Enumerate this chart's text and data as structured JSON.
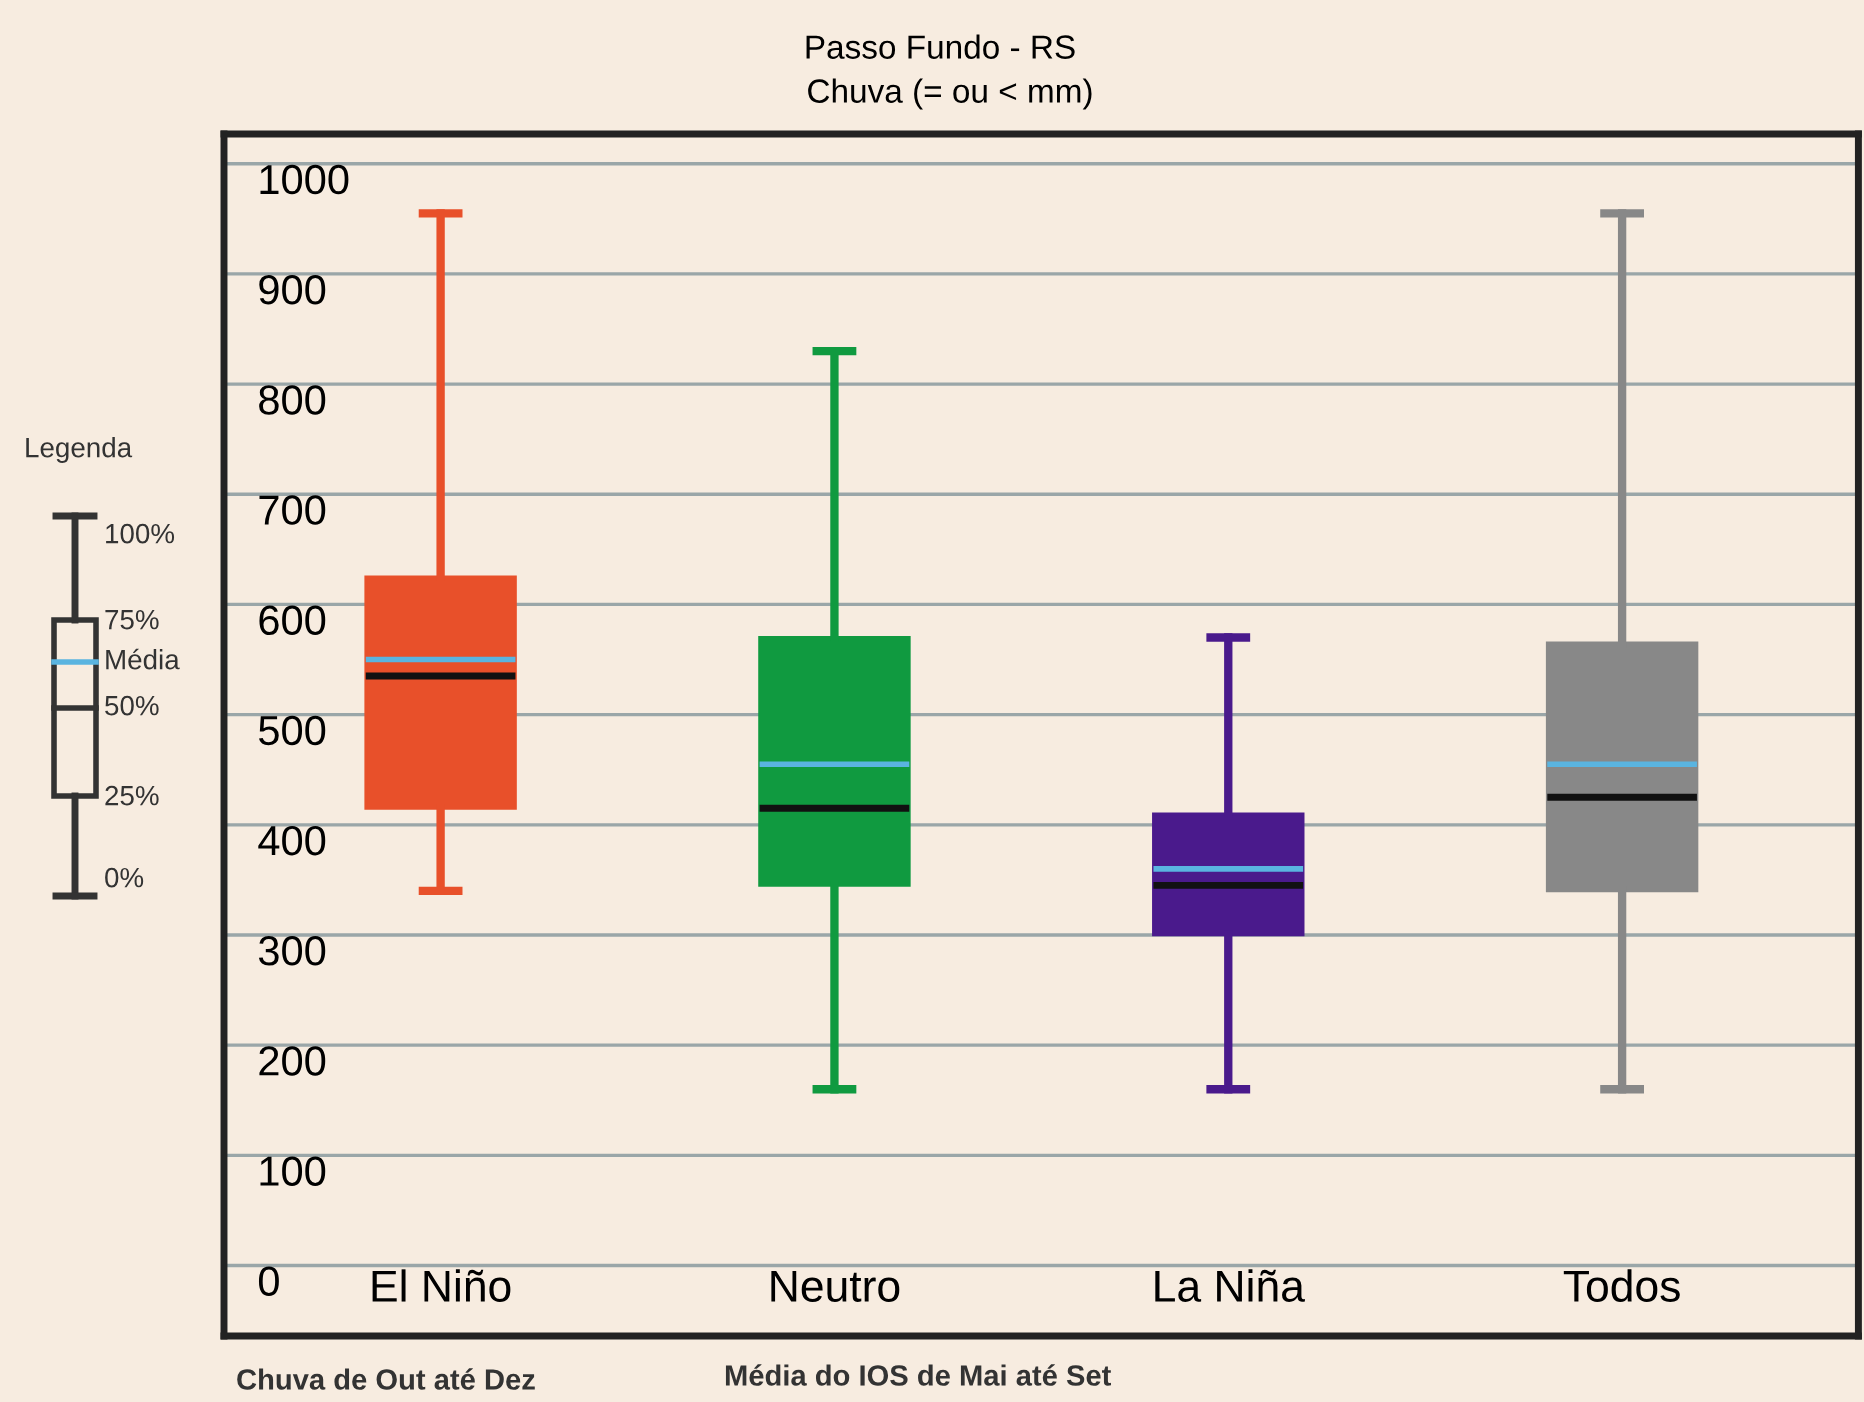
{
  "chart_data": {
    "type": "box",
    "title": "Passo Fundo - RS",
    "subtitle": "Chuva (= ou < mm)",
    "categories": [
      "El Niño",
      "Neutro",
      "La Niña",
      "Todos"
    ],
    "boxes": [
      {
        "low": 340,
        "q1": 415,
        "median": 535,
        "q3": 625,
        "high": 955,
        "mean": 550
      },
      {
        "low": 160,
        "q1": 345,
        "median": 415,
        "q3": 570,
        "high": 830,
        "mean": 455
      },
      {
        "low": 160,
        "q1": 300,
        "median": 345,
        "q3": 410,
        "high": 570,
        "mean": 360
      },
      {
        "low": 160,
        "q1": 340,
        "median": 425,
        "q3": 565,
        "high": 955,
        "mean": 455
      }
    ],
    "colors": [
      "#e8502a",
      "#109a40",
      "#4a1a8c",
      "#888888"
    ],
    "ylim": [
      -64,
      1027
    ],
    "yticks": [
      0,
      100,
      200,
      300,
      400,
      500,
      600,
      700,
      800,
      900,
      1000
    ],
    "grid": "y",
    "annotations": [
      "Legenda",
      "100%",
      "75%",
      "Média",
      "50%",
      "25%",
      "0%",
      "Chuva de Out até Dez",
      "Média do IOS de Mai até Set"
    ]
  }
}
